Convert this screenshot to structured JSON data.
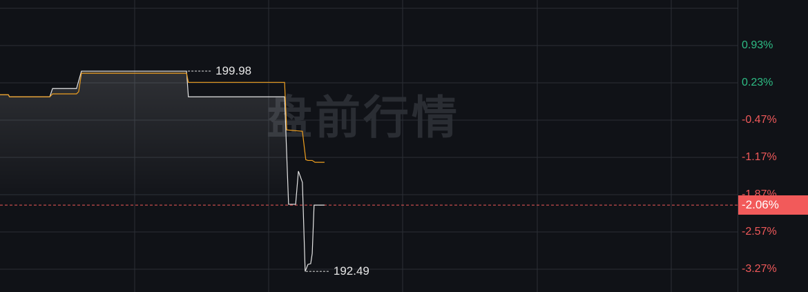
{
  "chart_data": {
    "type": "line",
    "title": "",
    "watermark": "盘前行情",
    "xlim": [
      0,
      240
    ],
    "ylim": [
      191.72,
      202.64
    ],
    "grid": true,
    "series": [
      {
        "color": "#e6e6e6",
        "points": [
          [
            0,
            199.1
          ],
          [
            2.7,
            199.1
          ],
          [
            3.1,
            199.02
          ],
          [
            16.2,
            199.02
          ],
          [
            17.1,
            199.33
          ],
          [
            24.9,
            199.33
          ],
          [
            26.5,
            199.98
          ],
          [
            60.7,
            199.98
          ],
          [
            61.3,
            199.02
          ],
          [
            92.6,
            199.02
          ],
          [
            93.9,
            195.0
          ],
          [
            96.2,
            195.0
          ],
          [
            97.1,
            196.24
          ],
          [
            98.4,
            195.82
          ],
          [
            99.3,
            192.49
          ],
          [
            100.2,
            192.75
          ],
          [
            101.1,
            192.78
          ],
          [
            101.6,
            193.16
          ],
          [
            102.2,
            194.97
          ],
          [
            105.6,
            194.97
          ]
        ]
      },
      {
        "color": "#f0a020",
        "points": [
          [
            0,
            199.1
          ],
          [
            2.7,
            199.1
          ],
          [
            3.1,
            199.02
          ],
          [
            16.2,
            199.02
          ],
          [
            17.1,
            199.13
          ],
          [
            24.9,
            199.13
          ],
          [
            25.6,
            199.21
          ],
          [
            26.5,
            199.9
          ],
          [
            60.7,
            199.9
          ],
          [
            61.3,
            199.56
          ],
          [
            92.6,
            199.56
          ],
          [
            93.3,
            197.78
          ],
          [
            98.4,
            197.73
          ],
          [
            99.5,
            196.67
          ],
          [
            100.2,
            196.64
          ],
          [
            101.6,
            196.64
          ],
          [
            102.5,
            196.57
          ],
          [
            105.6,
            196.57
          ]
        ]
      }
    ],
    "high_label": {
      "value": "199.98",
      "price": 199.98,
      "x": 60.7
    },
    "low_label": {
      "value": "192.49",
      "price": 192.49,
      "x": 99.3
    },
    "y_ticks": [
      {
        "label": "0.93%",
        "color": "#2ebd85"
      },
      {
        "label": "0.23%",
        "color": "#2ebd85"
      },
      {
        "label": "-0.47%",
        "color": "#f0595a"
      },
      {
        "label": "-1.17%",
        "color": "#f0595a"
      },
      {
        "label": "-1.87%",
        "color": "#f0595a"
      },
      {
        "label": "-2.57%",
        "color": "#f0595a"
      },
      {
        "label": "-3.27%",
        "color": "#f0595a"
      }
    ],
    "current": {
      "label": "-2.06%",
      "price": 194.97,
      "color": "#f25a5a"
    }
  }
}
